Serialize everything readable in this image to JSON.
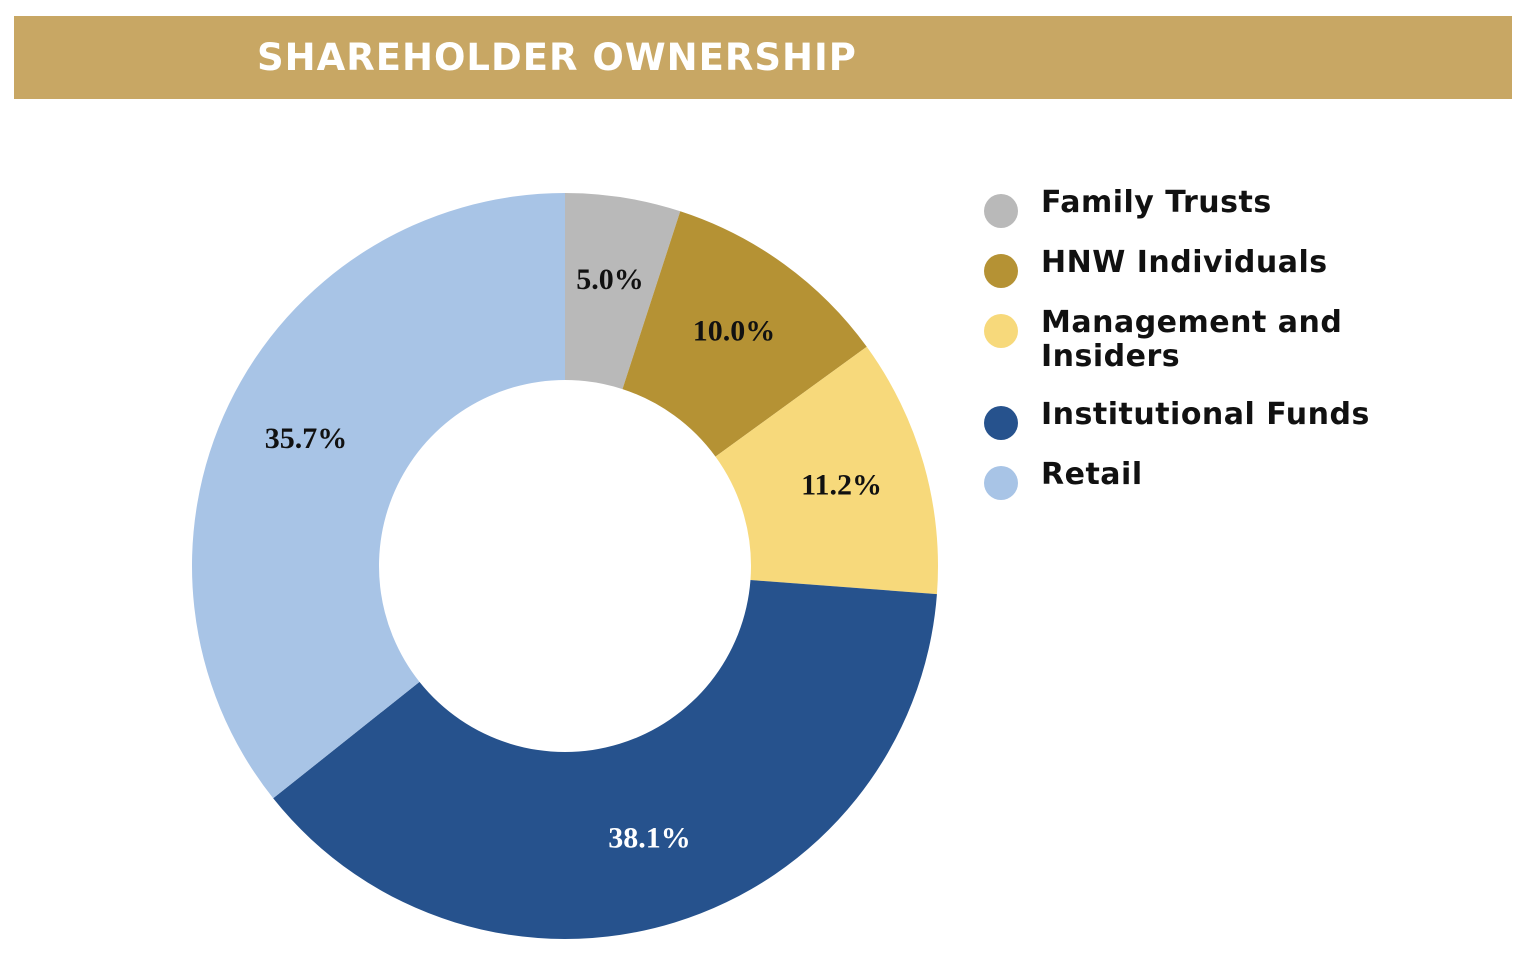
{
  "header": {
    "title": "SHAREHOLDER OWNERSHIP",
    "background_color": "#c8a764"
  },
  "chart_data": {
    "type": "pie",
    "variant": "donut",
    "start_angle": "12 o'clock",
    "direction": "clockwise",
    "legend_position": "right",
    "slices": [
      {
        "name": "Family Trusts",
        "value": 5.0,
        "label": "5.0%",
        "color": "#b9b9b9",
        "label_color": "#111111"
      },
      {
        "name": "HNW Individuals",
        "value": 10.0,
        "label": "10.0%",
        "color": "#b59234",
        "label_color": "#111111"
      },
      {
        "name": "Management and Insiders",
        "value": 11.2,
        "label": "11.2%",
        "color": "#f7d97b",
        "label_color": "#111111"
      },
      {
        "name": "Institutional Funds",
        "value": 38.1,
        "label": "38.1%",
        "color": "#26528d",
        "label_color": "#ffffff"
      },
      {
        "name": "Retail",
        "value": 35.7,
        "label": "35.7%",
        "color": "#a8c4e6",
        "label_color": "#111111"
      }
    ]
  },
  "legend": {
    "items": [
      {
        "label": "Family Trusts",
        "color": "#b9b9b9"
      },
      {
        "label": "HNW Individuals",
        "color": "#b59234"
      },
      {
        "label": "Management and Insiders",
        "color": "#f7d97b"
      },
      {
        "label": "Institutional Funds",
        "color": "#26528d"
      },
      {
        "label": "Retail",
        "color": "#a8c4e6"
      }
    ]
  }
}
